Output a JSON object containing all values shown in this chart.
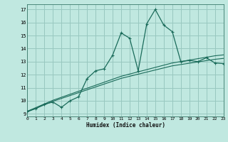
{
  "xlabel": "Humidex (Indice chaleur)",
  "bg_color": "#c0e8e0",
  "grid_color": "#98c8c0",
  "line_color": "#1a6b5a",
  "x_data": [
    0,
    1,
    2,
    3,
    4,
    5,
    6,
    7,
    8,
    9,
    10,
    11,
    12,
    13,
    14,
    15,
    16,
    17,
    18,
    19,
    20,
    21,
    22,
    23
  ],
  "y_curve": [
    9.2,
    9.4,
    9.75,
    9.9,
    9.5,
    10.0,
    10.3,
    11.7,
    12.3,
    12.45,
    13.5,
    15.2,
    14.8,
    12.3,
    15.9,
    17.0,
    15.8,
    15.3,
    13.0,
    13.1,
    13.0,
    13.3,
    12.9,
    12.85
  ],
  "y_line1": [
    9.15,
    9.42,
    9.69,
    9.96,
    10.18,
    10.4,
    10.62,
    10.84,
    11.06,
    11.28,
    11.5,
    11.72,
    11.88,
    12.04,
    12.2,
    12.36,
    12.52,
    12.68,
    12.78,
    12.88,
    12.98,
    13.08,
    13.18,
    13.25
  ],
  "y_line2": [
    9.2,
    9.48,
    9.76,
    10.04,
    10.27,
    10.5,
    10.73,
    10.96,
    11.19,
    11.42,
    11.65,
    11.88,
    12.05,
    12.22,
    12.39,
    12.56,
    12.73,
    12.9,
    13.01,
    13.12,
    13.23,
    13.34,
    13.45,
    13.52
  ],
  "xlim": [
    0,
    23
  ],
  "ylim": [
    8.8,
    17.4
  ],
  "yticks": [
    9,
    10,
    11,
    12,
    13,
    14,
    15,
    16,
    17
  ],
  "xticks": [
    0,
    1,
    2,
    3,
    4,
    5,
    6,
    7,
    8,
    9,
    10,
    11,
    12,
    13,
    14,
    15,
    16,
    17,
    18,
    19,
    20,
    21,
    22,
    23
  ]
}
